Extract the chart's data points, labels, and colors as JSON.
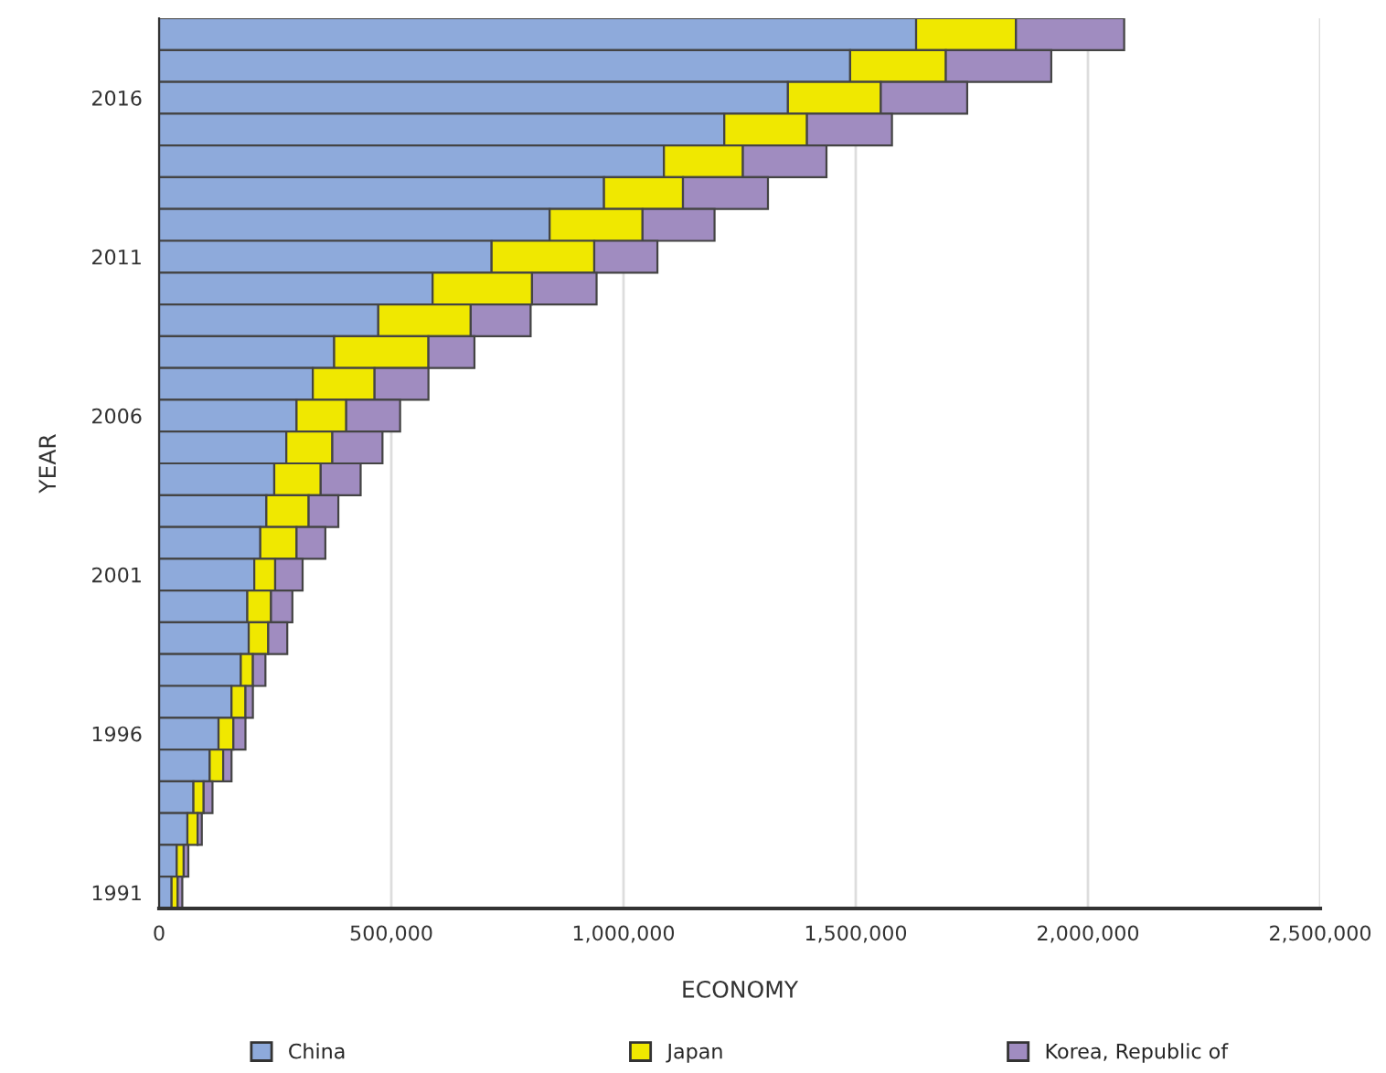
{
  "chart_data": {
    "type": "bar",
    "orientation": "horizontal",
    "stacked": true,
    "xlabel": "ECONOMY",
    "ylabel": "YEAR",
    "categories": [
      null,
      null,
      "2016",
      null,
      null,
      null,
      null,
      "2011",
      null,
      null,
      null,
      null,
      "2006",
      null,
      null,
      null,
      null,
      "2001",
      null,
      null,
      null,
      null,
      "1996",
      null,
      null,
      null,
      null,
      "1991"
    ],
    "series": [
      {
        "name": "China",
        "color": "#8eaadb",
        "values": [
          1630000,
          1488000,
          1354000,
          1217000,
          1087000,
          958000,
          841000,
          716000,
          589000,
          472000,
          377000,
          331000,
          296000,
          274000,
          248000,
          231000,
          218000,
          205000,
          190000,
          193000,
          176000,
          156000,
          128000,
          109000,
          74000,
          61000,
          38000,
          27000
        ]
      },
      {
        "name": "Japan",
        "color": "#f0e800",
        "values": [
          215000,
          206000,
          200000,
          178000,
          170000,
          170000,
          200000,
          221000,
          214000,
          199000,
          203000,
          133000,
          107000,
          99000,
          100000,
          91000,
          78000,
          45000,
          51000,
          42000,
          26000,
          30000,
          32000,
          29000,
          22000,
          22000,
          15000,
          13000
        ]
      },
      {
        "name": "Korea, Republic of",
        "color": "#a08cc0",
        "values": [
          233000,
          227000,
          186000,
          183000,
          180000,
          183000,
          155000,
          136000,
          139000,
          129000,
          99000,
          116000,
          116000,
          108000,
          86000,
          64000,
          62000,
          59000,
          46000,
          41000,
          27000,
          16000,
          26000,
          18000,
          19000,
          9000,
          10000,
          10000
        ]
      }
    ],
    "xlim": [
      0,
      2500000
    ],
    "xticks": [
      {
        "value": 0,
        "label": "0"
      },
      {
        "value": 500000,
        "label": "500,000"
      },
      {
        "value": 1000000,
        "label": "1,000,000"
      },
      {
        "value": 1500000,
        "label": "1,500,000"
      },
      {
        "value": 2000000,
        "label": "2,000,000"
      },
      {
        "value": 2500000,
        "label": "2,500,000"
      }
    ],
    "grid": "x",
    "legend": "bottom"
  }
}
